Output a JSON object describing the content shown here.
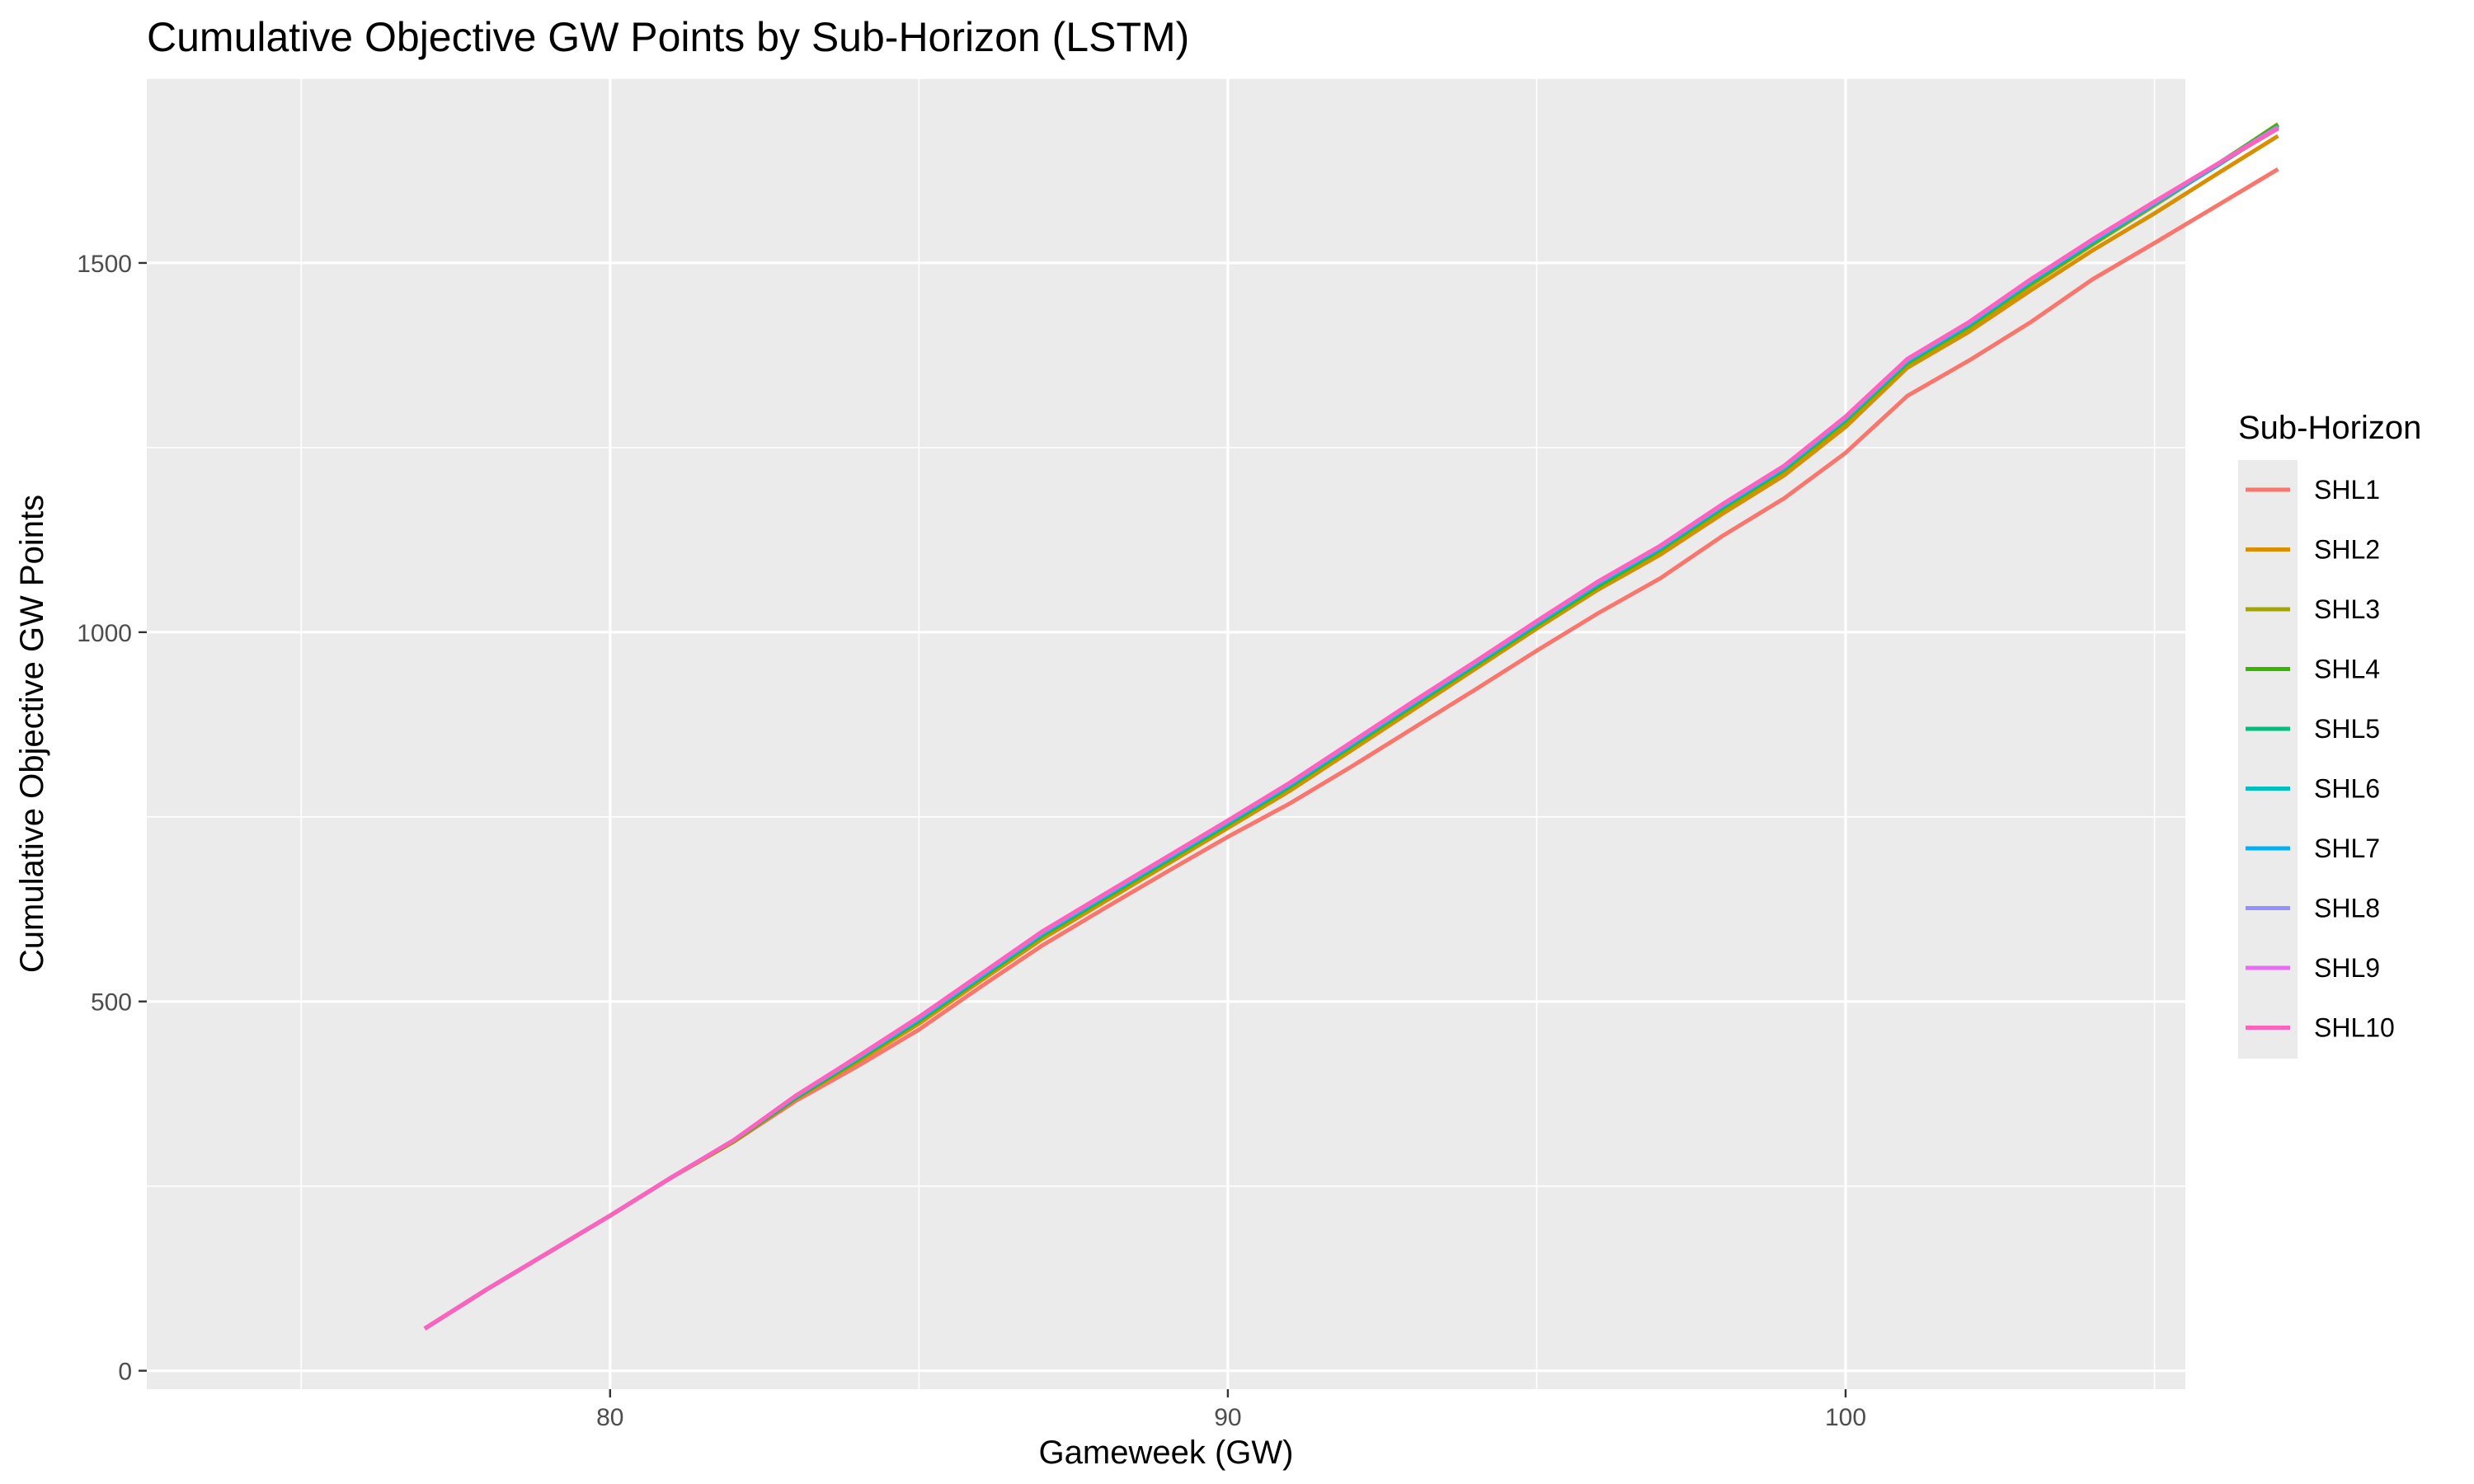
{
  "chart_data": {
    "type": "line",
    "title": "Cumulative Objective GW Points by Sub-Horizon (LSTM)",
    "xlabel": "Gameweek (GW)",
    "ylabel": "Cumulative Objective GW Points",
    "xlim": [
      72.5,
      105.5
    ],
    "ylim": [
      -25,
      1750
    ],
    "x_ticks": [
      80,
      90,
      100
    ],
    "y_ticks": [
      0,
      500,
      1000,
      1500
    ],
    "x_minor": [
      75,
      85,
      95,
      105
    ],
    "y_minor": [
      250,
      750,
      1250,
      1750
    ],
    "grid": true,
    "panel_background": "#ebebeb",
    "legend": {
      "title": "Sub-Horizon",
      "position": "right"
    },
    "x": [
      77,
      78,
      79,
      80,
      81,
      82,
      83,
      84,
      85,
      86,
      87,
      88,
      89,
      90,
      91,
      92,
      93,
      94,
      95,
      96,
      97,
      98,
      99,
      100,
      101,
      102,
      103,
      104,
      105,
      106,
      107
    ],
    "series": [
      {
        "name": "SHL1",
        "color": "#F8766D",
        "values": [
          57,
          110,
          160,
          210,
          262,
          310,
          365,
          412,
          462,
          520,
          576,
          626,
          675,
          723,
          768,
          818,
          870,
          922,
          975,
          1026,
          1073,
          1130,
          1181,
          1243,
          1320,
          1368,
          1420,
          1478,
          1527,
          1577,
          1627
        ]
      },
      {
        "name": "SHL2",
        "color": "#D89000",
        "values": [
          57,
          110,
          160,
          210,
          262,
          310,
          368,
          418,
          470,
          528,
          585,
          635,
          685,
          735,
          785,
          840,
          895,
          950,
          1005,
          1058,
          1105,
          1160,
          1212,
          1278,
          1358,
          1407,
          1463,
          1517,
          1567,
          1620,
          1672
        ]
      },
      {
        "name": "SHL3",
        "color": "#A3A500",
        "values": [
          57,
          110,
          160,
          210,
          262,
          311,
          369,
          420,
          473,
          531,
          588,
          638,
          688,
          738,
          789,
          844,
          899,
          953,
          1008,
          1061,
          1110,
          1165,
          1218,
          1284,
          1362,
          1412,
          1470,
          1525,
          1578,
          1632,
          1688
        ]
      },
      {
        "name": "SHL4",
        "color": "#39B600",
        "values": [
          57,
          110,
          160,
          210,
          262,
          311,
          369,
          421,
          474,
          532,
          590,
          640,
          690,
          740,
          791,
          846,
          901,
          955,
          1010,
          1063,
          1112,
          1168,
          1220,
          1287,
          1365,
          1415,
          1473,
          1527,
          1580,
          1633,
          1687
        ]
      },
      {
        "name": "SHL5",
        "color": "#00BF7D",
        "values": [
          57,
          110,
          160,
          210,
          262,
          312,
          370,
          422,
          475,
          533,
          591,
          641,
          691,
          741,
          792,
          847,
          902,
          956,
          1011,
          1065,
          1113,
          1169,
          1221,
          1288,
          1366,
          1416,
          1474,
          1528,
          1580,
          1632,
          1685
        ]
      },
      {
        "name": "SHL6",
        "color": "#00BFC4",
        "values": [
          57,
          110,
          160,
          210,
          262,
          312,
          371,
          423,
          476,
          534,
          592,
          642,
          692,
          742,
          793,
          848,
          903,
          957,
          1012,
          1066,
          1114,
          1170,
          1222,
          1289,
          1367,
          1417,
          1475,
          1529,
          1580,
          1631,
          1684
        ]
      },
      {
        "name": "SHL7",
        "color": "#00B0F6",
        "values": [
          57,
          110,
          160,
          210,
          262,
          312,
          371,
          424,
          477,
          535,
          593,
          643,
          693,
          743,
          794,
          849,
          904,
          958,
          1013,
          1067,
          1115,
          1171,
          1223,
          1290,
          1368,
          1418,
          1476,
          1530,
          1581,
          1632,
          1684
        ]
      },
      {
        "name": "SHL8",
        "color": "#9590FF",
        "values": [
          57,
          110,
          160,
          210,
          262,
          312,
          372,
          424,
          478,
          536,
          594,
          644,
          694,
          744,
          795,
          850,
          905,
          959,
          1014,
          1068,
          1116,
          1172,
          1224,
          1291,
          1369,
          1419,
          1477,
          1531,
          1582,
          1633,
          1684
        ]
      },
      {
        "name": "SHL9",
        "color": "#E76BF3",
        "values": [
          57,
          110,
          160,
          210,
          262,
          312,
          372,
          425,
          479,
          537,
          595,
          645,
          695,
          745,
          796,
          851,
          906,
          960,
          1015,
          1069,
          1117,
          1173,
          1225,
          1292,
          1370,
          1420,
          1478,
          1532,
          1583,
          1633,
          1683
        ]
      },
      {
        "name": "SHL10",
        "color": "#FF62BC",
        "values": [
          57,
          110,
          160,
          210,
          262,
          312,
          372,
          425,
          479,
          537,
          595,
          645,
          695,
          745,
          796,
          851,
          906,
          960,
          1015,
          1069,
          1117,
          1173,
          1225,
          1292,
          1370,
          1420,
          1478,
          1532,
          1583,
          1633,
          1682
        ]
      }
    ]
  }
}
